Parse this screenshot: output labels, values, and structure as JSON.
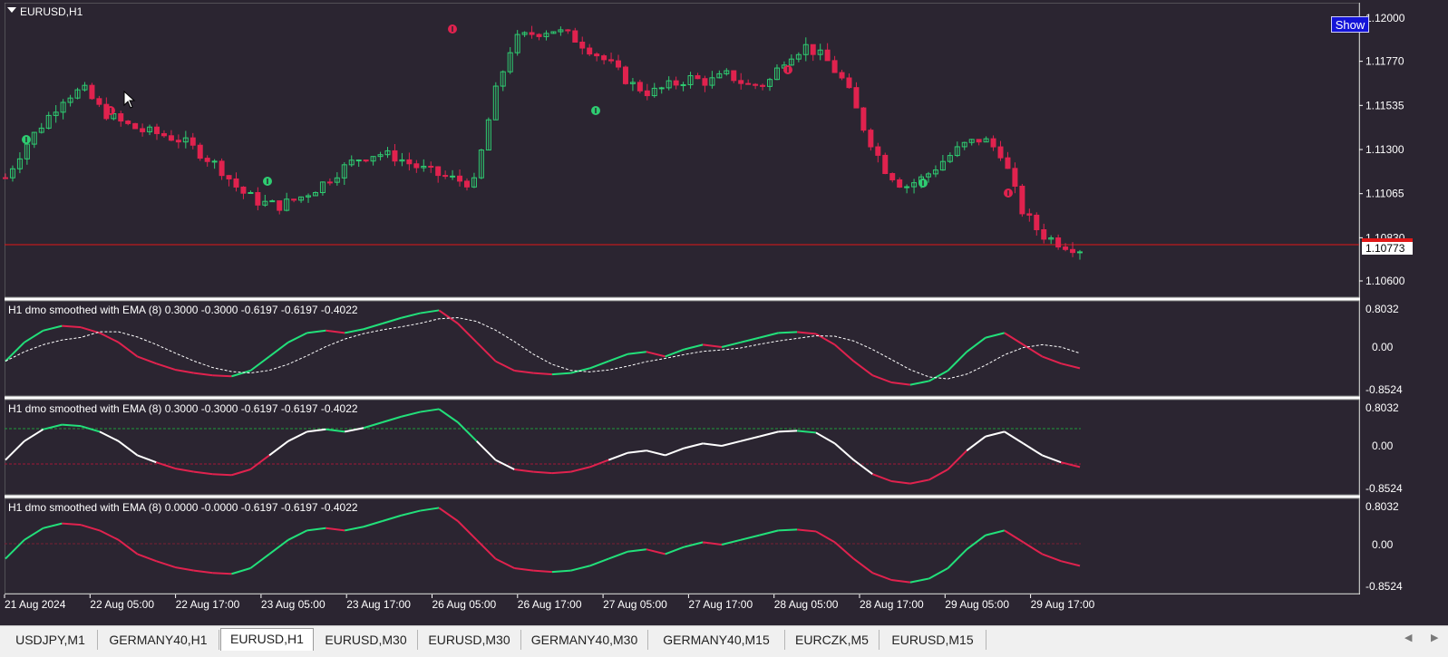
{
  "window": {
    "symbol_title": "EURUSD,H1"
  },
  "colors": {
    "background": "#2b2531",
    "bull": "#2ecc71",
    "bear": "#e0224e",
    "indicator_up": "#22e07a",
    "indicator_down": "#e0224e",
    "indicator_neutral": "#ffffff",
    "price_line": "#e01818"
  },
  "main_pane": {
    "show_button_label": "Show",
    "price_axis": [
      "1.12000",
      "1.11770",
      "1.11535",
      "1.11300",
      "1.11065",
      "1.10830",
      "1.10600"
    ],
    "current_price_label": "1.10773"
  },
  "indicator_panes": [
    {
      "label": "H1 dmo smoothed with EMA (8) 0.3000 -0.3000 -0.6197 -0.6197 -0.4022",
      "axis": [
        "0.8032",
        "0.00",
        "-0.8524"
      ]
    },
    {
      "label": "H1 dmo smoothed with EMA (8) 0.3000 -0.3000 -0.6197 -0.6197 -0.4022",
      "axis": [
        "0.8032",
        "0.00",
        "-0.8524"
      ]
    },
    {
      "label": "H1 dmo smoothed with EMA (8) 0.0000 -0.0000 -0.6197 -0.6197 -0.4022",
      "axis": [
        "0.8032",
        "0.00",
        "-0.8524"
      ]
    }
  ],
  "time_axis": [
    "21 Aug 2024",
    "22 Aug 05:00",
    "22 Aug 17:00",
    "23 Aug 05:00",
    "23 Aug 17:00",
    "26 Aug 05:00",
    "26 Aug 17:00",
    "27 Aug 05:00",
    "27 Aug 17:00",
    "28 Aug 05:00",
    "28 Aug 17:00",
    "29 Aug 05:00",
    "29 Aug 17:00"
  ],
  "tabs": [
    "USDJPY,M1",
    "GERMANY40,H1",
    "EURUSD,H1",
    "EURUSD,M30",
    "EURUSD,M30",
    "GERMANY40,M30",
    "GERMANY40,M15",
    "EURCZK,M5",
    "EURUSD,M15"
  ],
  "active_tab": "EURUSD,H1",
  "chart_data": {
    "type": "candlestick",
    "title": "EURUSD,H1",
    "y_ticks": [
      1.12,
      1.1177,
      1.11535,
      1.113,
      1.11065,
      1.1083,
      1.106
    ],
    "ylim": [
      1.1055,
      1.1208
    ],
    "current_price": 1.10773,
    "series": [
      {
        "name": "close",
        "values": [
          1.1115,
          1.1132,
          1.1145,
          1.1158,
          1.1162,
          1.115,
          1.1144,
          1.114,
          1.1138,
          1.1135,
          1.1128,
          1.112,
          1.1108,
          1.1102,
          1.11,
          1.1104,
          1.111,
          1.1118,
          1.1125,
          1.1128,
          1.1126,
          1.1121,
          1.1117,
          1.1114,
          1.1112,
          1.1158,
          1.1188,
          1.1192,
          1.1194,
          1.119,
          1.1183,
          1.1175,
          1.1165,
          1.116,
          1.1164,
          1.1168,
          1.1166,
          1.117,
          1.1164,
          1.1165,
          1.118,
          1.1185,
          1.1178,
          1.1165,
          1.114,
          1.112,
          1.111,
          1.1115,
          1.1124,
          1.1132,
          1.1136,
          1.1128,
          1.1098,
          1.1085,
          1.108,
          1.1077
        ]
      }
    ]
  }
}
